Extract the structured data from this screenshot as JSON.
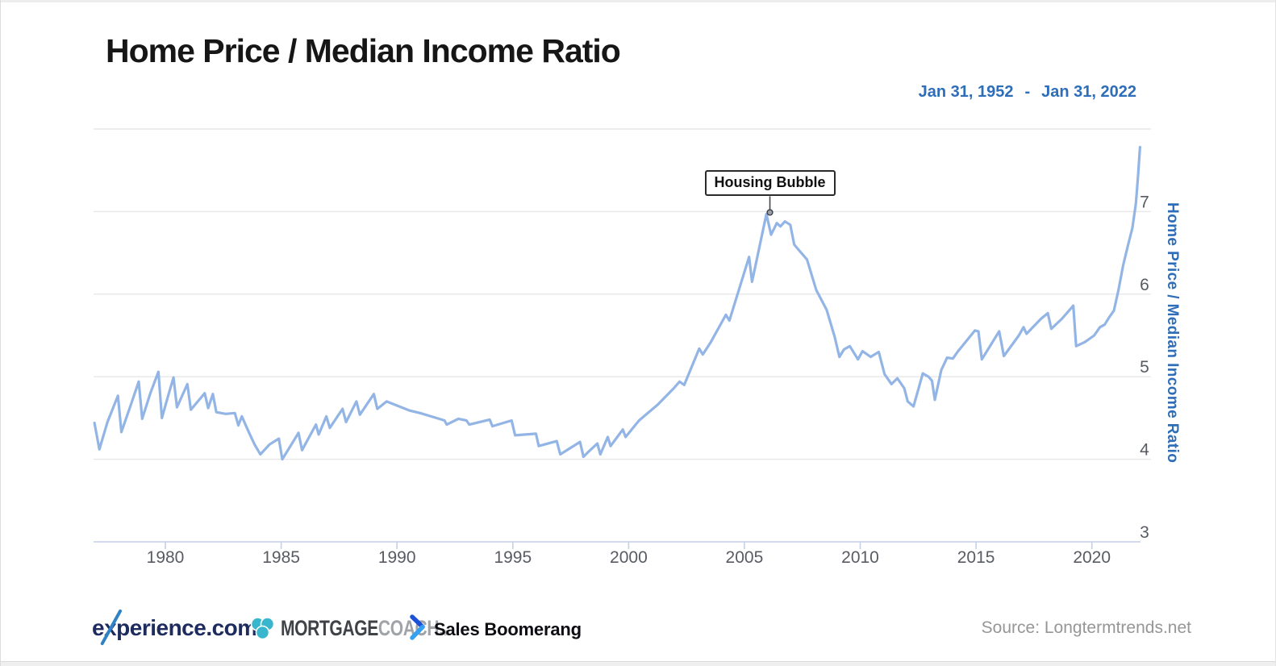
{
  "header": {
    "title": "Home Price / Median Income Ratio",
    "date_start": "Jan 31, 1952",
    "date_sep": "-",
    "date_end": "Jan 31, 2022"
  },
  "chart_data": {
    "type": "line",
    "title": "Home Price / Median Income Ratio",
    "x_axis": {
      "ticks": [
        1980,
        1985,
        1990,
        1995,
        2000,
        2005,
        2010,
        2015,
        2020
      ],
      "range": [
        1976.9,
        2022.1
      ]
    },
    "y_axis": {
      "label": "Home Price / Median Income Ratio",
      "ticks": [
        3,
        4,
        5,
        6,
        7
      ],
      "range": [
        3,
        8
      ],
      "side": "right"
    },
    "grid": true,
    "legend": false,
    "annotation": {
      "label": "Housing Bubble",
      "x": 2006.1,
      "y": 6.99
    },
    "colors": {
      "line": "#93b5e5",
      "grid": "#e7e7e7",
      "axis_line": "#c4cfe8",
      "tick_label": "#585c62",
      "accent": "#2e6db8",
      "annotation": "#2b2b2b"
    },
    "series": [
      {
        "name": "Home Price / Median Income Ratio",
        "color": "#93b5e5",
        "points": [
          [
            1976.94,
            4.44
          ],
          [
            1977.15,
            4.12
          ],
          [
            1977.5,
            4.45
          ],
          [
            1977.95,
            4.77
          ],
          [
            1978.1,
            4.33
          ],
          [
            1978.5,
            4.65
          ],
          [
            1978.85,
            4.94
          ],
          [
            1979.0,
            4.49
          ],
          [
            1979.35,
            4.8
          ],
          [
            1979.7,
            5.06
          ],
          [
            1979.85,
            4.5
          ],
          [
            1980.1,
            4.75
          ],
          [
            1980.35,
            4.99
          ],
          [
            1980.5,
            4.63
          ],
          [
            1980.95,
            4.91
          ],
          [
            1981.1,
            4.6
          ],
          [
            1981.7,
            4.8
          ],
          [
            1981.85,
            4.62
          ],
          [
            1982.05,
            4.79
          ],
          [
            1982.2,
            4.57
          ],
          [
            1982.6,
            4.55
          ],
          [
            1983.0,
            4.56
          ],
          [
            1983.15,
            4.41
          ],
          [
            1983.3,
            4.52
          ],
          [
            1983.6,
            4.33
          ],
          [
            1983.85,
            4.18
          ],
          [
            1984.1,
            4.06
          ],
          [
            1984.5,
            4.18
          ],
          [
            1984.9,
            4.25
          ],
          [
            1985.05,
            4.0
          ],
          [
            1985.4,
            4.16
          ],
          [
            1985.75,
            4.32
          ],
          [
            1985.9,
            4.11
          ],
          [
            1986.5,
            4.42
          ],
          [
            1986.62,
            4.3
          ],
          [
            1986.95,
            4.52
          ],
          [
            1987.1,
            4.38
          ],
          [
            1987.65,
            4.61
          ],
          [
            1987.8,
            4.45
          ],
          [
            1988.25,
            4.7
          ],
          [
            1988.4,
            4.54
          ],
          [
            1989.0,
            4.79
          ],
          [
            1989.15,
            4.61
          ],
          [
            1989.55,
            4.7
          ],
          [
            1990.0,
            4.65
          ],
          [
            1990.55,
            4.59
          ],
          [
            1991.0,
            4.56
          ],
          [
            1991.7,
            4.5
          ],
          [
            1992.05,
            4.47
          ],
          [
            1992.15,
            4.42
          ],
          [
            1992.65,
            4.49
          ],
          [
            1993.0,
            4.47
          ],
          [
            1993.12,
            4.42
          ],
          [
            1994.0,
            4.48
          ],
          [
            1994.12,
            4.4
          ],
          [
            1994.95,
            4.47
          ],
          [
            1995.1,
            4.29
          ],
          [
            1996.0,
            4.31
          ],
          [
            1996.12,
            4.16
          ],
          [
            1996.9,
            4.22
          ],
          [
            1997.05,
            4.06
          ],
          [
            1997.9,
            4.21
          ],
          [
            1998.05,
            4.03
          ],
          [
            1998.3,
            4.1
          ],
          [
            1998.65,
            4.19
          ],
          [
            1998.78,
            4.06
          ],
          [
            1999.1,
            4.27
          ],
          [
            1999.22,
            4.16
          ],
          [
            1999.75,
            4.36
          ],
          [
            1999.87,
            4.27
          ],
          [
            2000.45,
            4.47
          ],
          [
            2001.25,
            4.66
          ],
          [
            2001.95,
            4.86
          ],
          [
            2002.2,
            4.94
          ],
          [
            2002.4,
            4.9
          ],
          [
            2003.05,
            5.34
          ],
          [
            2003.2,
            5.27
          ],
          [
            2003.55,
            5.42
          ],
          [
            2004.2,
            5.75
          ],
          [
            2004.35,
            5.68
          ],
          [
            2005.2,
            6.45
          ],
          [
            2005.33,
            6.15
          ],
          [
            2005.95,
            6.97
          ],
          [
            2006.15,
            6.72
          ],
          [
            2006.4,
            6.86
          ],
          [
            2006.55,
            6.82
          ],
          [
            2006.75,
            6.88
          ],
          [
            2006.98,
            6.84
          ],
          [
            2007.15,
            6.6
          ],
          [
            2007.3,
            6.55
          ],
          [
            2007.7,
            6.42
          ],
          [
            2008.1,
            6.05
          ],
          [
            2008.55,
            5.81
          ],
          [
            2008.9,
            5.48
          ],
          [
            2009.1,
            5.24
          ],
          [
            2009.3,
            5.33
          ],
          [
            2009.55,
            5.37
          ],
          [
            2009.9,
            5.21
          ],
          [
            2010.1,
            5.31
          ],
          [
            2010.45,
            5.24
          ],
          [
            2010.8,
            5.3
          ],
          [
            2011.05,
            5.03
          ],
          [
            2011.35,
            4.91
          ],
          [
            2011.6,
            4.98
          ],
          [
            2011.9,
            4.86
          ],
          [
            2012.05,
            4.7
          ],
          [
            2012.3,
            4.64
          ],
          [
            2012.7,
            5.04
          ],
          [
            2012.95,
            5.0
          ],
          [
            2013.1,
            4.95
          ],
          [
            2013.22,
            4.72
          ],
          [
            2013.5,
            5.08
          ],
          [
            2013.75,
            5.23
          ],
          [
            2014.0,
            5.22
          ],
          [
            2014.2,
            5.3
          ],
          [
            2014.95,
            5.56
          ],
          [
            2015.1,
            5.55
          ],
          [
            2015.25,
            5.21
          ],
          [
            2016.0,
            5.55
          ],
          [
            2016.2,
            5.25
          ],
          [
            2016.85,
            5.5
          ],
          [
            2017.05,
            5.6
          ],
          [
            2017.18,
            5.52
          ],
          [
            2017.8,
            5.7
          ],
          [
            2018.1,
            5.77
          ],
          [
            2018.25,
            5.58
          ],
          [
            2018.7,
            5.7
          ],
          [
            2019.2,
            5.86
          ],
          [
            2019.32,
            5.37
          ],
          [
            2019.7,
            5.42
          ],
          [
            2020.1,
            5.5
          ],
          [
            2020.35,
            5.6
          ],
          [
            2020.55,
            5.63
          ],
          [
            2020.75,
            5.72
          ],
          [
            2020.95,
            5.8
          ],
          [
            2021.15,
            6.05
          ],
          [
            2021.35,
            6.35
          ],
          [
            2021.55,
            6.58
          ],
          [
            2021.75,
            6.8
          ],
          [
            2021.9,
            7.1
          ],
          [
            2022.0,
            7.45
          ],
          [
            2022.08,
            7.78
          ]
        ]
      }
    ]
  },
  "footer": {
    "experience": {
      "prefix": "e",
      "x": "x",
      "suffix": "perience.com"
    },
    "mortgagecoach": {
      "icon": "mortgage-coach-trefoil-icon",
      "part1": "MORTGAGE",
      "part2": "COACH.",
      "reg": "®"
    },
    "salesboomerang": {
      "icon": "sales-boomerang-chevron-icon",
      "label": "Sales Boomerang"
    },
    "source": "Source: Longtermtrends.net"
  }
}
